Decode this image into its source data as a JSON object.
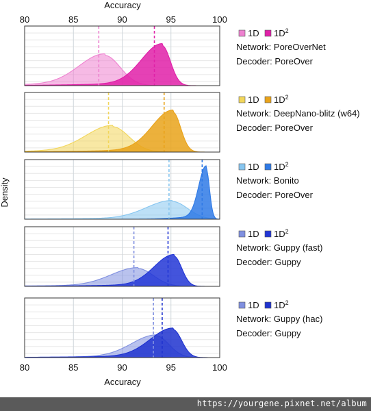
{
  "chart_data": {
    "type": "area",
    "x_axis": {
      "label": "Accuracy",
      "range": [
        80,
        100
      ],
      "ticks": [
        80,
        85,
        90,
        95,
        100
      ]
    },
    "y_axis": {
      "label": "Density"
    },
    "grid": true,
    "legend_labels": {
      "d1": "1D",
      "d2_base": "1D",
      "d2_sup": "2"
    },
    "panels": [
      {
        "network": "Network: PoreOverNet",
        "decoder": "Decoder: PoreOver",
        "colors": {
          "d1": "#ee82d0",
          "d2": "#e020a8"
        },
        "series": [
          {
            "key": "1D",
            "median": 87.6,
            "peak_x": 88.2,
            "peak": 0.56,
            "sd_left": 2.6,
            "sd_right": 1.6,
            "tail": 0.05
          },
          {
            "key": "1D2",
            "median": 93.3,
            "peak_x": 94.1,
            "peak": 0.74,
            "sd_left": 2.1,
            "sd_right": 0.85,
            "tail": 0.05
          }
        ]
      },
      {
        "network": "Network: DeepNano-blitz (w64)",
        "decoder": "Decoder: PoreOver",
        "colors": {
          "d1": "#f2d65a",
          "d2": "#e9a31a"
        },
        "series": [
          {
            "key": "1D",
            "median": 88.6,
            "peak_x": 89.0,
            "peak": 0.47,
            "sd_left": 2.7,
            "sd_right": 1.7,
            "tail": 0.05
          },
          {
            "key": "1D2",
            "median": 94.3,
            "peak_x": 95.2,
            "peak": 0.74,
            "sd_left": 2.1,
            "sd_right": 0.8,
            "tail": 0.05
          }
        ]
      },
      {
        "network": "Network: Bonito",
        "decoder": "Decoder: PoreOver",
        "colors": {
          "d1": "#87c6f0",
          "d2": "#2f7ae6"
        },
        "series": [
          {
            "key": "1D",
            "median": 94.8,
            "peak_x": 95.1,
            "peak": 0.33,
            "sd_left": 2.6,
            "sd_right": 1.6,
            "tail": 0.05
          },
          {
            "key": "1D2",
            "median": 98.2,
            "peak_x": 98.6,
            "peak": 0.94,
            "sd_left": 0.75,
            "sd_right": 0.35,
            "tail": 0.05
          }
        ]
      },
      {
        "network": "Network: Guppy (fast)",
        "decoder": "Guppy",
        "decoder_label": "Decoder: Guppy",
        "colors": {
          "d1": "#8090e0",
          "d2": "#2236d6"
        },
        "series": [
          {
            "key": "1D",
            "median": 91.2,
            "peak_x": 91.6,
            "peak": 0.33,
            "sd_left": 2.7,
            "sd_right": 1.6,
            "tail": 0.05
          },
          {
            "key": "1D2",
            "median": 94.7,
            "peak_x": 95.3,
            "peak": 0.56,
            "sd_left": 2.0,
            "sd_right": 0.8,
            "tail": 0.05
          }
        ]
      },
      {
        "network": "Network: Guppy (hac)",
        "decoder": "Decoder: Guppy",
        "colors": {
          "d1": "#8090e0",
          "d2": "#1f33cf"
        },
        "series": [
          {
            "key": "1D",
            "median": 93.2,
            "peak_x": 93.5,
            "peak": 0.4,
            "sd_left": 2.5,
            "sd_right": 1.3,
            "tail": 0.05
          },
          {
            "key": "1D2",
            "median": 94.1,
            "peak_x": 95.2,
            "peak": 0.52,
            "sd_left": 2.3,
            "sd_right": 0.9,
            "tail": 0.05
          }
        ]
      }
    ]
  },
  "watermark": "https://yourgene.pixnet.net/album"
}
